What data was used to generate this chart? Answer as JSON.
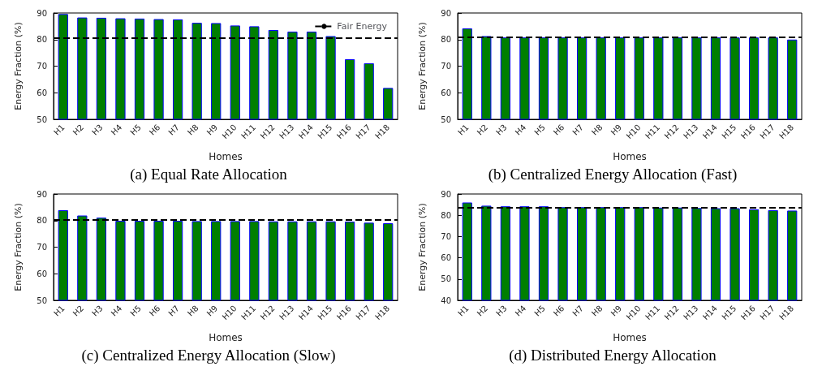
{
  "chart_data": [
    {
      "type": "bar",
      "title": "(a) Equal Rate Allocation",
      "xlabel": "Homes",
      "ylabel": "Energy Fraction (%)",
      "categories": [
        "H1",
        "H2",
        "H3",
        "H4",
        "H5",
        "H6",
        "H7",
        "H8",
        "H9",
        "H10",
        "H11",
        "H12",
        "H13",
        "H14",
        "H15",
        "H16",
        "H17",
        "H18"
      ],
      "series": [
        {
          "color": "#007f00",
          "values": [
            89.6,
            88.3,
            88.2,
            88.0,
            87.9,
            87.7,
            87.6,
            86.3,
            86.2,
            85.3,
            85.0,
            83.6,
            83.0,
            83.0,
            81.3,
            72.6,
            71.1,
            61.8
          ]
        }
      ],
      "ylim": [
        50,
        90
      ],
      "yticks": [
        50,
        60,
        70,
        80,
        90
      ],
      "ref_lines": [
        {
          "axis": "y",
          "value": 80.7,
          "label": "Fair Energy",
          "color": "#000000",
          "line_style": "dashed"
        }
      ],
      "legend": "top right",
      "grid": false
    },
    {
      "type": "bar",
      "title": "(b) Centralized Energy Allocation (Fast)",
      "xlabel": "Homes",
      "ylabel": "Energy Fraction (%)",
      "categories": [
        "H1",
        "H2",
        "H3",
        "H4",
        "H5",
        "H6",
        "H7",
        "H8",
        "H9",
        "H10",
        "H11",
        "H12",
        "H13",
        "H14",
        "H15",
        "H16",
        "H17",
        "H18"
      ],
      "series": [
        {
          "color": "#007f00",
          "values": [
            84.2,
            81.3,
            80.8,
            80.8,
            80.8,
            80.8,
            80.8,
            80.8,
            80.8,
            80.8,
            80.8,
            80.8,
            80.8,
            80.8,
            80.8,
            80.8,
            80.8,
            80.0
          ]
        }
      ],
      "ylim": [
        50,
        90
      ],
      "yticks": [
        50,
        60,
        70,
        80,
        90
      ],
      "ref_lines": [
        {
          "axis": "y",
          "value": 80.8,
          "color": "#000000",
          "line_style": "dashed"
        }
      ],
      "grid": false
    },
    {
      "type": "bar",
      "title": "(c) Centralized Energy Allocation (Slow)",
      "xlabel": "Homes",
      "ylabel": "Energy Fraction (%)",
      "categories": [
        "H1",
        "H2",
        "H3",
        "H4",
        "H5",
        "H6",
        "H7",
        "H8",
        "H9",
        "H10",
        "H11",
        "H12",
        "H13",
        "H14",
        "H15",
        "H16",
        "H17",
        "H18"
      ],
      "series": [
        {
          "color": "#007f00",
          "values": [
            83.9,
            81.9,
            81.1,
            79.9,
            79.9,
            79.9,
            79.9,
            79.8,
            79.8,
            79.8,
            79.8,
            79.7,
            79.7,
            79.7,
            79.7,
            79.6,
            79.2,
            79.0
          ]
        }
      ],
      "ylim": [
        50,
        90
      ],
      "yticks": [
        50,
        60,
        70,
        80,
        90
      ],
      "ref_lines": [
        {
          "axis": "y",
          "value": 80.2,
          "color": "#000000",
          "line_style": "dashed"
        }
      ],
      "grid": false
    },
    {
      "type": "bar",
      "title": "(d) Distributed Energy Allocation",
      "xlabel": "Homes",
      "ylabel": "Energy Fraction (%)",
      "categories": [
        "H1",
        "H2",
        "H3",
        "H4",
        "H5",
        "H6",
        "H7",
        "H8",
        "H9",
        "H10",
        "H11",
        "H12",
        "H13",
        "H14",
        "H15",
        "H16",
        "H17",
        "H18"
      ],
      "series": [
        {
          "color": "#007f00",
          "values": [
            86.0,
            84.5,
            84.2,
            84.2,
            84.2,
            83.8,
            83.8,
            83.8,
            83.8,
            83.8,
            83.6,
            83.6,
            83.4,
            83.3,
            83.3,
            82.8,
            82.4,
            82.2
          ]
        }
      ],
      "ylim": [
        40,
        90
      ],
      "yticks": [
        40,
        50,
        60,
        70,
        80,
        90
      ],
      "ref_lines": [
        {
          "axis": "y",
          "value": 83.6,
          "color": "#000000",
          "line_style": "dashed"
        }
      ],
      "grid": false
    }
  ]
}
